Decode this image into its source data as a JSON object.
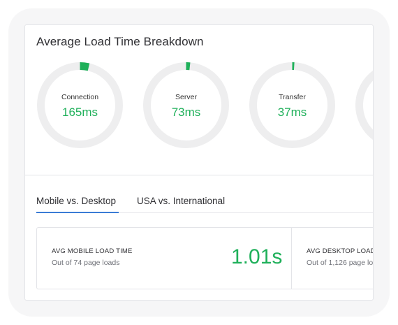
{
  "title": "Average Load Time Breakdown",
  "colors": {
    "accent_green": "#1fb05a",
    "track_gray": "#eeeeef",
    "tab_active_blue": "#3a7bd5"
  },
  "metrics": [
    {
      "label": "Connection",
      "value": "165ms"
    },
    {
      "label": "Server",
      "value": "73ms"
    },
    {
      "label": "Transfer",
      "value": "37ms"
    },
    {
      "label": "",
      "value": ""
    }
  ],
  "tabs": [
    {
      "label": "Mobile vs. Desktop",
      "active": true
    },
    {
      "label": "USA vs. International",
      "active": false
    }
  ],
  "stats": {
    "mobile": {
      "title": "AVG MOBILE LOAD TIME",
      "subtitle": "Out of 74 page loads",
      "value": "1.01s"
    },
    "desktop": {
      "title": "AVG DESKTOP LOAD",
      "subtitle": "Out of 1,126 page lo"
    }
  }
}
